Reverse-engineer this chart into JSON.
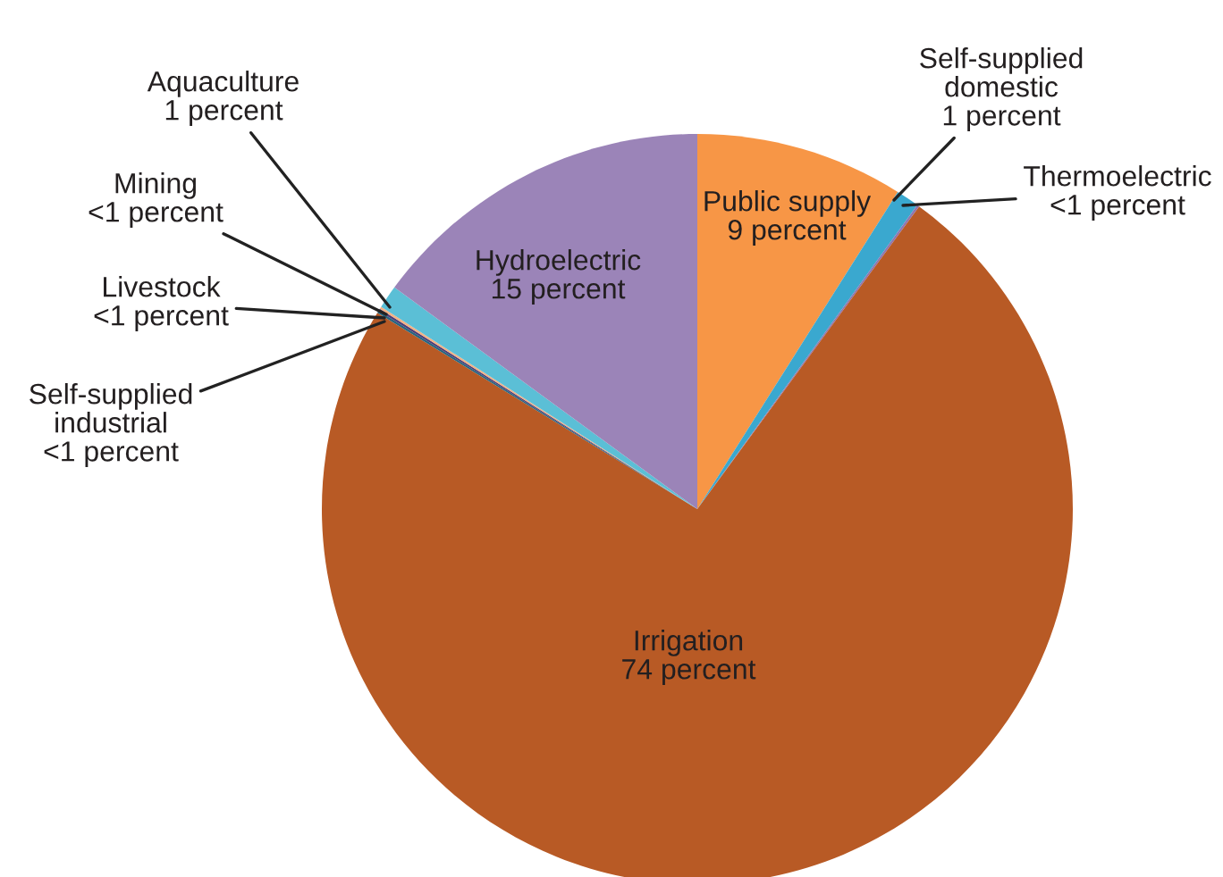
{
  "chart_data": {
    "type": "pie",
    "categories": [
      "Public supply",
      "Self-supplied\ndomestic",
      "Thermoelectric",
      "Irrigation",
      "Self-supplied\nindustrial",
      "Livestock",
      "Mining",
      "Aquaculture",
      "Hydroelectric"
    ],
    "values": [
      9,
      1,
      0.1,
      74,
      0.1,
      0.1,
      0.1,
      1,
      15
    ],
    "value_labels": [
      "9 percent",
      "1 percent",
      "<1 percent",
      "74 percent",
      "<1 percent",
      "<1 percent",
      "<1 percent",
      "1 percent",
      "15 percent"
    ],
    "colors": [
      "#f79646",
      "#3aa8cf",
      "#8d76b0",
      "#b85a25",
      "#27657e",
      "#4b3d78",
      "#f4b183",
      "#5bbfd6",
      "#9b84b8"
    ]
  }
}
